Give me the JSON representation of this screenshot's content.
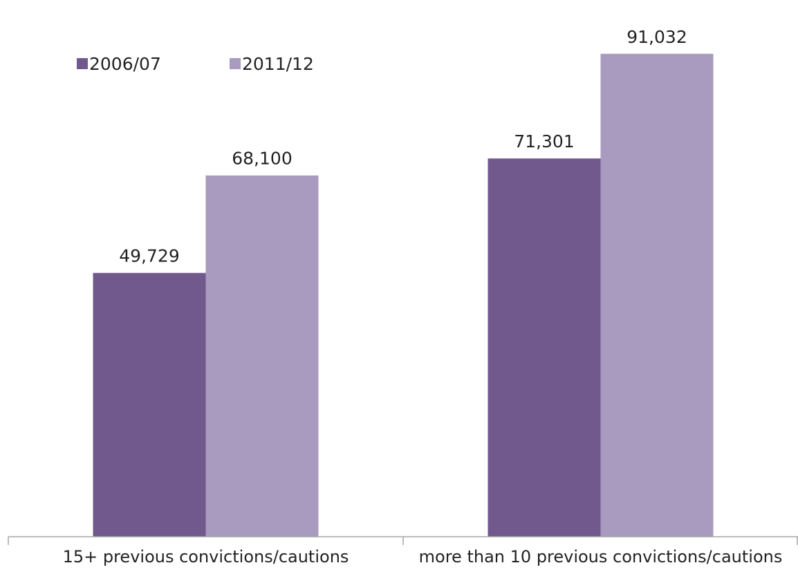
{
  "chart_data": {
    "type": "bar",
    "categories": [
      "15+ previous convictions/cautions",
      "more than 10 previous convictions/cautions"
    ],
    "series": [
      {
        "name": "2006/07",
        "values": [
          49729,
          71301
        ],
        "color": "#71598e"
      },
      {
        "name": "2011/12",
        "values": [
          68100,
          91032
        ],
        "color": "#a99abf"
      }
    ],
    "data_labels": [
      [
        "49,729",
        "71,301"
      ],
      [
        "68,100",
        "91,032"
      ]
    ],
    "ylim": [
      0,
      100000
    ],
    "y_axis_visible": false,
    "grid": false,
    "legend_position": "top-left",
    "axis_color": "#a6a6a6"
  }
}
